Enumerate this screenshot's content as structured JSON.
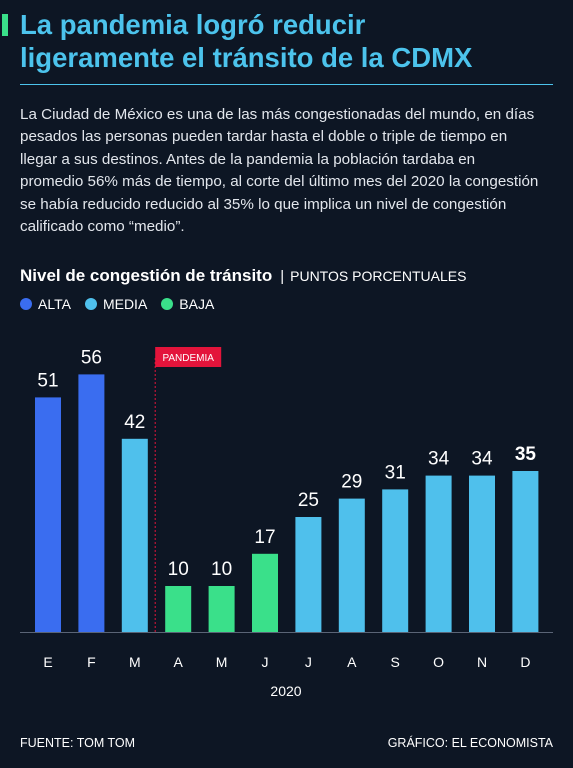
{
  "header": {
    "title": "La pandemia logró reducir\nligeramente el tránsito de la CDMX",
    "intro": "La Ciudad de México es una de las más congestionadas del mundo, en días pesados las personas pueden tardar hasta el doble o triple de tiempo en llegar a sus destinos. Antes de la pandemia la población tardaba en promedio 56% más de tiempo, al corte del último mes del 2020 la congestión se había reducido reducido al 35% lo que implica un nivel de congestión calificado como “medio”."
  },
  "chart_data": {
    "type": "bar",
    "title": "Nivel de congestión de tránsito",
    "unit": "PUNTOS PORCENTUALES",
    "categories": [
      "E",
      "F",
      "M",
      "A",
      "M",
      "J",
      "J",
      "A",
      "S",
      "O",
      "N",
      "D"
    ],
    "values": [
      51,
      56,
      42,
      10,
      10,
      17,
      25,
      29,
      31,
      34,
      34,
      35
    ],
    "levels": [
      "alta",
      "alta",
      "media",
      "baja",
      "baja",
      "baja",
      "media",
      "media",
      "media",
      "media",
      "media",
      "media"
    ],
    "xlabel": "2020",
    "ylim": [
      0,
      60
    ],
    "legend": [
      {
        "key": "alta",
        "label": "ALTA",
        "color": "#3a6df0"
      },
      {
        "key": "media",
        "label": "MEDIA",
        "color": "#4fc0ec"
      },
      {
        "key": "baja",
        "label": "BAJA",
        "color": "#3ae08a"
      }
    ],
    "annotation": {
      "label": "PANDEMIA",
      "after_index": 2,
      "color": "#e3143b"
    },
    "highlight_index": 11
  },
  "footer": {
    "source": "FUENTE: TOM TOM",
    "credit": "GRÁFICO: EL ECONOMISTA"
  }
}
